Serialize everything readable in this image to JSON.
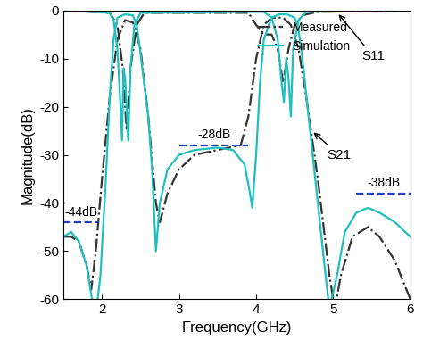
{
  "chart_data": {
    "type": "line",
    "xlabel": "Frequency(GHz)",
    "ylabel": "Magnitude(dB)",
    "xlim": [
      1.5,
      6
    ],
    "ylim": [
      -60,
      0
    ],
    "xticks": [
      2,
      3,
      4,
      5,
      6
    ],
    "yticks": [
      -60,
      -50,
      -40,
      -30,
      -20,
      -10,
      0
    ],
    "legend": "upper right",
    "series": [
      {
        "name": "Measured",
        "color": "#333333",
        "line_style": "dashdot",
        "curves": [
          {
            "label": "S11",
            "x": [
              1.5,
              2.1,
              2.2,
              2.27,
              2.32,
              2.37,
              2.45,
              2.55,
              3.9,
              4.0,
              4.1,
              4.2,
              4.28,
              4.35,
              4.42,
              4.5,
              4.6,
              4.8,
              6.0
            ],
            "values": [
              0,
              -0.5,
              -3,
              -12,
              -25,
              -12,
              -3,
              -0.5,
              -0.5,
              -3,
              -5,
              -5,
              -8,
              -15,
              -8,
              -3,
              -1,
              -0.3,
              0
            ]
          },
          {
            "label": "S21",
            "x": [
              1.5,
              1.6,
              1.7,
              1.8,
              1.86,
              1.92,
              2.0,
              2.1,
              2.2,
              2.3,
              2.4,
              2.5,
              2.6,
              2.7,
              2.75,
              2.85,
              3.0,
              3.2,
              3.5,
              3.8,
              3.9,
              4.0,
              4.1,
              4.2,
              4.35,
              4.45,
              4.55,
              4.65,
              4.8,
              4.95,
              5.02,
              5.1,
              5.25,
              5.45,
              5.6,
              5.8,
              5.95,
              6.0
            ],
            "values": [
              -47,
              -47,
              -48,
              -53,
              -58,
              -50,
              -35,
              -18,
              -6,
              -2,
              -2.5,
              -8,
              -22,
              -40,
              -44,
              -38,
              -33,
              -30,
              -29,
              -28,
              -22,
              -10,
              -3,
              -1.5,
              -1.5,
              -3,
              -8,
              -18,
              -35,
              -55,
              -62,
              -55,
              -47,
              -45,
              -47,
              -52,
              -58,
              -60
            ]
          }
        ]
      },
      {
        "name": "Simulation",
        "color": "#1fbfbf",
        "line_style": "solid",
        "curves": [
          {
            "label": "S11",
            "x": [
              1.5,
              2.1,
              2.15,
              2.2,
              2.24,
              2.26,
              2.28,
              2.3,
              2.34,
              2.37,
              2.42,
              2.5,
              4.1,
              4.2,
              4.28,
              4.33,
              4.36,
              4.39,
              4.42,
              4.45,
              4.48,
              4.55,
              4.65,
              6.0
            ],
            "values": [
              0,
              -0.5,
              -2,
              -8,
              -20,
              -27,
              -12,
              -14,
              -27,
              -12,
              -3,
              -0.5,
              -0.3,
              -1.5,
              -6,
              -15,
              -19,
              -10,
              -14,
              -22,
              -8,
              -2,
              -0.3,
              0
            ]
          },
          {
            "label": "S21",
            "x": [
              1.5,
              1.6,
              1.7,
              1.8,
              1.87,
              1.93,
              1.98,
              2.05,
              2.1,
              2.15,
              2.2,
              2.3,
              2.4,
              2.45,
              2.5,
              2.6,
              2.65,
              2.7,
              2.75,
              2.85,
              3.0,
              3.2,
              3.5,
              3.7,
              3.85,
              3.92,
              3.95,
              4.0,
              4.05,
              4.1,
              4.2,
              4.3,
              4.4,
              4.5,
              4.55,
              4.6,
              4.7,
              4.8,
              4.9,
              4.95,
              5.05,
              5.15,
              5.3,
              5.45,
              5.6,
              5.8,
              6.0
            ],
            "values": [
              -47,
              -46,
              -48,
              -53,
              -60,
              -62,
              -55,
              -35,
              -18,
              -6,
              -1.5,
              -0.8,
              -1,
              -3,
              -9,
              -22,
              -33,
              -50,
              -40,
              -33,
              -30,
              -29,
              -28.5,
              -29,
              -32,
              -38,
              -41,
              -30,
              -15,
              -6,
              -1.5,
              -0.8,
              -0.8,
              -1.5,
              -4,
              -10,
              -25,
              -40,
              -55,
              -62,
              -55,
              -46,
              -42,
              -41,
              -42,
              -44,
              -47
            ]
          }
        ]
      }
    ],
    "reference_lines": [
      {
        "label": "-44dB",
        "value": -44,
        "x": [
          1.5,
          1.95
        ],
        "color": "#1f3fbf"
      },
      {
        "label": "-28dB",
        "value": -28,
        "x": [
          3.0,
          3.9
        ],
        "color": "#1f3fbf"
      },
      {
        "label": "-38dB",
        "value": -38,
        "x": [
          5.3,
          6.0
        ],
        "color": "#1f3fbf"
      }
    ]
  }
}
